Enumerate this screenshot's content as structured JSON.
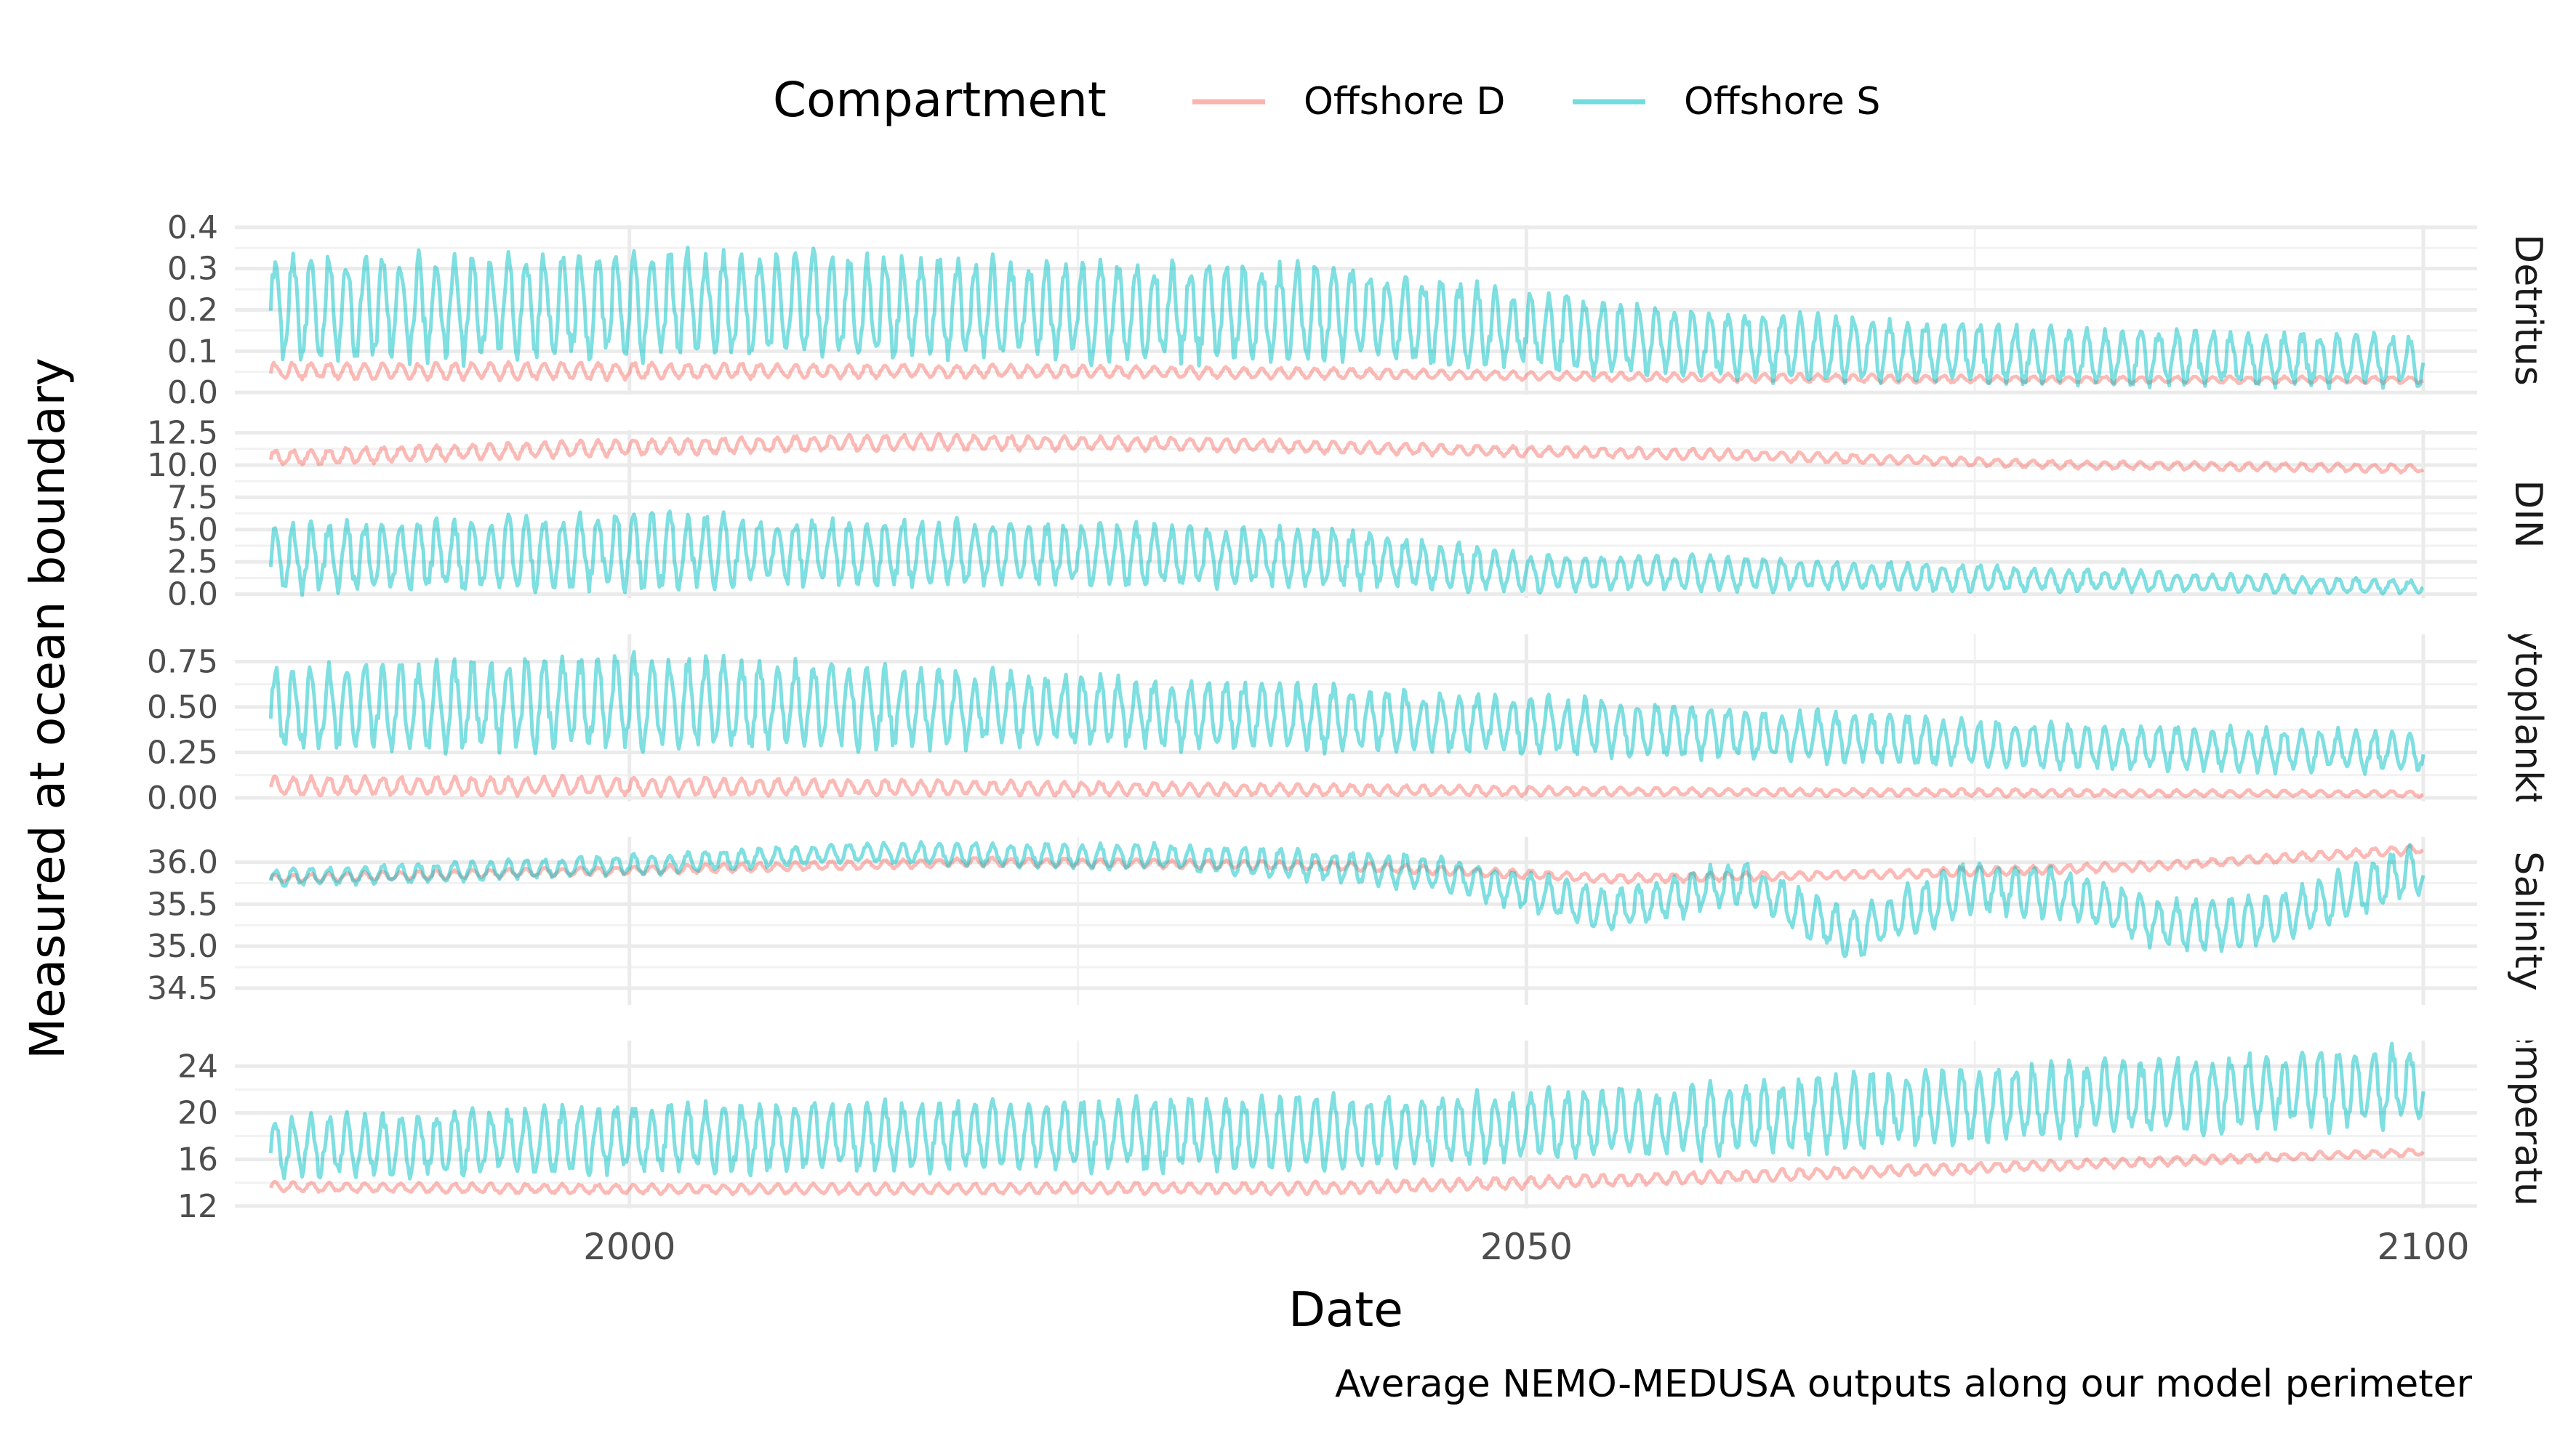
{
  "chart_data": {
    "type": "line",
    "facet_layout": "stacked vertical panels, shared x axis, free y scales",
    "xlabel": "Date",
    "ylabel": "Measured at ocean boundary",
    "caption": "Average NEMO-MEDUSA outputs along our model perimeter",
    "legend": {
      "title": "Compartment",
      "position": "top",
      "items": [
        {
          "name": "Offshore D",
          "color": "#F8766D"
        },
        {
          "name": "Offshore S",
          "color": "#00BFC4"
        }
      ]
    },
    "xlim": [
      1978,
      2103
    ],
    "x_ticks": [
      2000,
      2050,
      2100
    ],
    "x_range_data": [
      1980,
      2100
    ],
    "grid": true,
    "series_opacity": 0.5,
    "panels": [
      {
        "strip": "Detritus",
        "ylim": [
          -0.005,
          0.405
        ],
        "y_ticks": [
          0.0,
          0.1,
          0.2,
          0.3,
          0.4
        ],
        "y_tick_labels": [
          "0.0",
          "0.1",
          "0.2",
          "0.3",
          "0.4"
        ],
        "series": [
          {
            "name": "Offshore D",
            "x": [
              1980,
              2000,
              2020,
              2040,
              2050,
              2060,
              2080,
              2100
            ],
            "mean": [
              0.05,
              0.05,
              0.05,
              0.045,
              0.04,
              0.035,
              0.03,
              0.03
            ],
            "seasonal_amplitude": [
              0.02,
              0.02,
              0.015,
              0.012,
              0.01,
              0.01,
              0.008,
              0.008
            ]
          },
          {
            "name": "Offshore S",
            "x": [
              1980,
              2000,
              2020,
              2040,
              2050,
              2060,
              2080,
              2100
            ],
            "mean": [
              0.19,
              0.2,
              0.19,
              0.18,
              0.14,
              0.11,
              0.08,
              0.07
            ],
            "seasonal_amplitude": [
              0.12,
              0.13,
              0.12,
              0.11,
              0.09,
              0.08,
              0.07,
              0.06
            ]
          }
        ]
      },
      {
        "strip": "DIN",
        "ylim": [
          -0.3,
          12.7
        ],
        "y_ticks": [
          0.0,
          2.5,
          5.0,
          7.5,
          10.0,
          12.5
        ],
        "y_tick_labels": [
          "0.0",
          "2.5",
          "5.0",
          "7.5",
          "10.0",
          "12.5"
        ],
        "series": [
          {
            "name": "Offshore D",
            "x": [
              1980,
              2000,
              2015,
              2030,
              2050,
              2060,
              2080,
              2100
            ],
            "mean": [
              10.5,
              11.3,
              11.7,
              11.6,
              11.0,
              10.8,
              10.0,
              9.7
            ],
            "seasonal_amplitude": [
              0.6,
              0.6,
              0.6,
              0.5,
              0.4,
              0.4,
              0.3,
              0.3
            ]
          },
          {
            "name": "Offshore S",
            "x": [
              1980,
              2000,
              2020,
              2040,
              2050,
              2060,
              2080,
              2100
            ],
            "mean": [
              2.5,
              3.1,
              2.9,
              2.6,
              1.5,
              1.5,
              1.0,
              0.5
            ],
            "seasonal_amplitude": [
              2.5,
              2.9,
              2.4,
              2.2,
              1.4,
              1.3,
              0.9,
              0.5
            ]
          }
        ]
      },
      {
        "strip": "Phytoplankton",
        "ylim": [
          -0.02,
          0.9
        ],
        "y_ticks": [
          0.0,
          0.25,
          0.5,
          0.75
        ],
        "y_tick_labels": [
          "0.00",
          "0.25",
          "0.50",
          "0.75"
        ],
        "series": [
          {
            "name": "Offshore D",
            "x": [
              1980,
              2000,
              2020,
              2040,
              2060,
              2080,
              2100
            ],
            "mean": [
              0.06,
              0.06,
              0.05,
              0.04,
              0.03,
              0.025,
              0.02
            ],
            "seasonal_amplitude": [
              0.05,
              0.05,
              0.04,
              0.03,
              0.02,
              0.02,
              0.015
            ]
          },
          {
            "name": "Offshore S",
            "x": [
              1980,
              2000,
              2020,
              2040,
              2060,
              2080,
              2100
            ],
            "mean": [
              0.47,
              0.5,
              0.47,
              0.42,
              0.35,
              0.27,
              0.24
            ],
            "seasonal_amplitude": [
              0.22,
              0.25,
              0.2,
              0.17,
              0.14,
              0.12,
              0.11
            ]
          }
        ]
      },
      {
        "strip": "Salinity",
        "ylim": [
          34.3,
          36.3
        ],
        "y_ticks": [
          34.5,
          35.0,
          35.5,
          36.0
        ],
        "y_tick_labels": [
          "34.5",
          "35.0",
          "35.5",
          "36.0"
        ],
        "series": [
          {
            "name": "Offshore D",
            "x": [
              1980,
              2000,
              2020,
              2040,
              2055,
              2070,
              2085,
              2100
            ],
            "mean": [
              35.8,
              35.9,
              36.0,
              35.95,
              35.8,
              35.85,
              35.95,
              36.15
            ],
            "seasonal_amplitude": [
              0.05,
              0.05,
              0.05,
              0.05,
              0.05,
              0.05,
              0.05,
              0.05
            ]
          },
          {
            "name": "Offshore S",
            "x": [
              1980,
              2000,
              2012,
              2030,
              2045,
              2055,
              2062,
              2068,
              2075,
              2080,
              2086,
              2092,
              2100
            ],
            "mean": [
              35.8,
              35.95,
              36.1,
              36.05,
              35.85,
              35.4,
              35.75,
              35.1,
              35.7,
              35.6,
              35.2,
              35.3,
              35.9
            ],
            "seasonal_amplitude": [
              0.1,
              0.12,
              0.12,
              0.15,
              0.2,
              0.25,
              0.25,
              0.3,
              0.3,
              0.3,
              0.3,
              0.3,
              0.3
            ]
          }
        ]
      },
      {
        "strip": "Temperature",
        "ylim": [
          11.8,
          26.2
        ],
        "y_ticks": [
          12,
          16,
          20,
          24
        ],
        "y_tick_labels": [
          "12",
          "16",
          "20",
          "24"
        ],
        "series": [
          {
            "name": "Offshore D",
            "x": [
              1980,
              2000,
              2040,
              2060,
              2080,
              2100
            ],
            "mean": [
              13.6,
              13.4,
              13.5,
              14.4,
              15.5,
              16.6
            ],
            "seasonal_amplitude": [
              0.4,
              0.4,
              0.5,
              0.5,
              0.4,
              0.3
            ]
          },
          {
            "name": "Offshore S",
            "x": [
              1980,
              2000,
              2040,
              2060,
              2080,
              2100
            ],
            "mean": [
              16.8,
              17.5,
              18.0,
              19.0,
              20.8,
              22.0
            ],
            "seasonal_amplitude": [
              2.5,
              2.8,
              3.0,
              3.0,
              3.2,
              3.3
            ]
          }
        ]
      }
    ]
  }
}
